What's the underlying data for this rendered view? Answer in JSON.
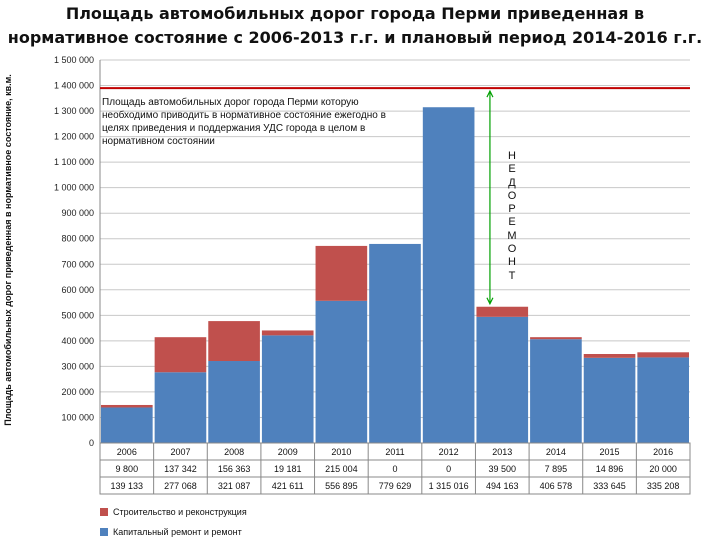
{
  "chart_data": {
    "type": "bar",
    "stacked": true,
    "title_line1": "Площадь автомобильных дорог города Перми приведенная в",
    "title_line2": "нормативное состояние с 2006-2013 г.г. и плановый период 2014-2016 г.г.",
    "ylabel": "Площадь автомобильных  дорог приведенная  в нормативное  состояние, кв.м.",
    "ylim": [
      0,
      1500000
    ],
    "ytick_values": [
      0,
      100000,
      200000,
      300000,
      400000,
      500000,
      600000,
      700000,
      800000,
      900000,
      1000000,
      1100000,
      1200000,
      1300000,
      1400000,
      1500000
    ],
    "ytick_labels": [
      "0",
      "100 000",
      "200 000",
      "300 000",
      "400 000",
      "500 000",
      "600 000",
      "700 000",
      "800 000",
      "900 000",
      "1 000 000",
      "1 100 000",
      "1 200 000",
      "1 300 000",
      "1 400 000",
      "1 500 000"
    ],
    "grid": true,
    "categories": [
      "2006",
      "2007",
      "2008",
      "2009",
      "2010",
      "2011",
      "2012",
      "2013",
      "2014",
      "2015",
      "2016"
    ],
    "series": [
      {
        "name": "Капитальный ремонт и ремонт",
        "color": "#4f81bd",
        "values": [
          139133,
          277068,
          321087,
          421611,
          556895,
          779629,
          1315016,
          494163,
          406578,
          333645,
          335208
        ],
        "labels": [
          "139 133",
          "277 068",
          "321 087",
          "421 611",
          "556 895",
          "779 629",
          "1 315 016",
          "494 163",
          "406 578",
          "333 645",
          "335 208"
        ]
      },
      {
        "name": "Строительство и реконструкция",
        "color": "#c0504d",
        "values": [
          9800,
          137342,
          156363,
          19181,
          215004,
          0,
          0,
          39500,
          7895,
          14896,
          20000
        ],
        "labels": [
          "9 800",
          "137 342",
          "156 363",
          "19 181",
          "215 004",
          "0",
          "0",
          "39 500",
          "7 895",
          "14 896",
          "20 000"
        ]
      }
    ],
    "reference_line": {
      "value": 1390000,
      "color": "#c00000",
      "text": "Площадь автомобильных дорог города Перми которую необходимо приводить в нормативное состояние ежегодно в целях приведения и поддержания УДС города в целом в нормативном состоянии"
    },
    "gap_annotation": {
      "from": 533663,
      "to": 1390000,
      "category": "2013",
      "text": "НЕДОРЕМОНТ",
      "color": "#00a000"
    },
    "legend_placement": "bottom-left"
  }
}
